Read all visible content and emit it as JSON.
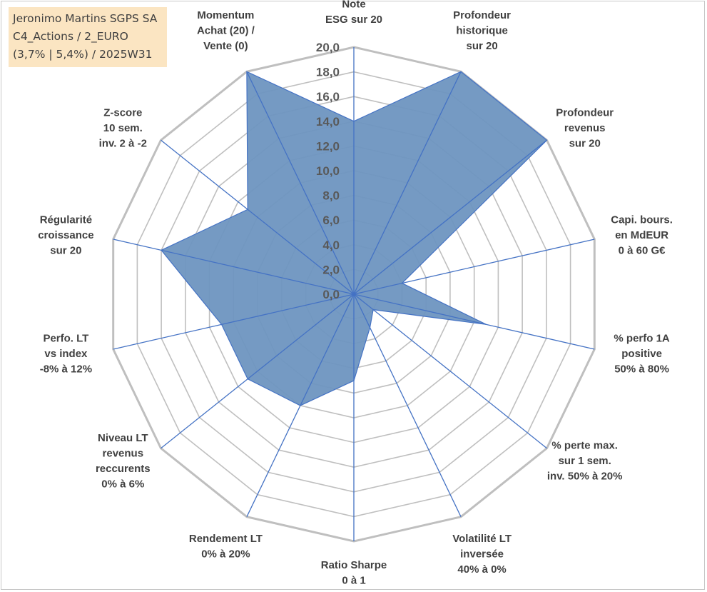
{
  "title_box": {
    "line1": "Jeronimo Martins SGPS SA",
    "line2": "C4_Actions / 2_EURO",
    "line3": "(3,7% | 5,4%) / 2025W31"
  },
  "chart_data": {
    "type": "radar",
    "r_min": 0,
    "r_max": 20,
    "r_step": 2,
    "tick_labels": [
      "0,0",
      "2,0",
      "4,0",
      "6,0",
      "8,0",
      "10,0",
      "12,0",
      "14,0",
      "16,0",
      "18,0",
      "20,0"
    ],
    "grid": true,
    "fill_color": "#6e95c0",
    "line_color": "#4472c4",
    "grid_color": "#bfbfbf",
    "axes": [
      {
        "label": [
          "Note",
          "ESG sur 20"
        ],
        "value": 14.0
      },
      {
        "label": [
          "Profondeur",
          "historique",
          "sur 20"
        ],
        "value": 20.0
      },
      {
        "label": [
          "Profondeur",
          "revenus",
          "sur 20"
        ],
        "value": 20.0
      },
      {
        "label": [
          "Capi. bours.",
          "en MdEUR",
          "0 à 60 G€"
        ],
        "value": 4.0
      },
      {
        "label": [
          "% perfo 1A",
          "positive",
          "50% à 80%"
        ],
        "value": 11.0
      },
      {
        "label": [
          "% perte max.",
          "sur 1 sem.",
          "inv. 50% à 20%"
        ],
        "value": 2.0
      },
      {
        "label": [
          "Volatilité LT",
          "inversée",
          "40% à 0%"
        ],
        "value": 3.0
      },
      {
        "label": [
          "Ratio Sharpe",
          "0 à 1"
        ],
        "value": 7.0
      },
      {
        "label": [
          "Rendement LT",
          "0% à 20%"
        ],
        "value": 10.0
      },
      {
        "label": [
          "Niveau LT",
          "revenus",
          "reccurents",
          "0% à 6%"
        ],
        "value": 11.0
      },
      {
        "label": [
          "Perfo. LT",
          "vs index",
          "-8% à 12%"
        ],
        "value": 11.0
      },
      {
        "label": [
          "Régularité",
          "croissance",
          "sur 20"
        ],
        "value": 16.0
      },
      {
        "label": [
          "Z-score",
          "10 sem.",
          "inv. 2 à -2"
        ],
        "value": 11.0
      },
      {
        "label": [
          "Momentum",
          "Achat (20) /",
          "Vente (0)"
        ],
        "value": 20.0
      }
    ]
  }
}
